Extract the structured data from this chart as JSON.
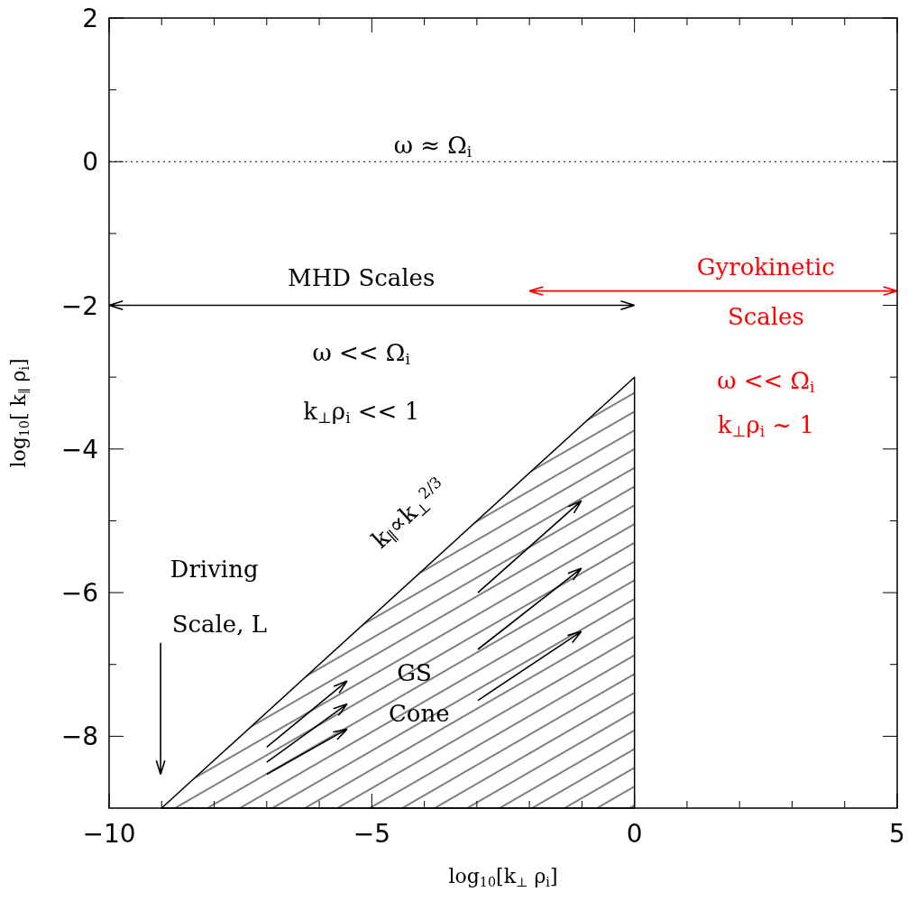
{
  "chart_data": {
    "type": "area",
    "xlabel": "log$_{10}$[k$_{⊥}$ ρ$_{i}$]",
    "ylabel": "log$_{10}$[ k$_{∥}$ ρ$_{i}$]",
    "xlim": [
      -10,
      5
    ],
    "ylim": [
      -9,
      2
    ],
    "xticks": [
      -10,
      {
        "value": -9,
        "label": null
      },
      {
        "value": -8,
        "label": null
      },
      {
        "value": -7,
        "label": null
      },
      {
        "value": -6,
        "label": null
      },
      -5,
      {
        "value": -4,
        "label": null
      },
      {
        "value": -3,
        "label": null
      },
      {
        "value": -2,
        "label": null
      },
      {
        "value": -1,
        "label": null
      },
      0,
      {
        "value": 1,
        "label": null
      },
      {
        "value": 2,
        "label": null
      },
      {
        "value": 3,
        "label": null
      },
      {
        "value": 4,
        "label": null
      },
      5
    ],
    "yticks": [
      -8,
      {
        "value": -7,
        "label": null
      },
      -6,
      {
        "value": -5,
        "label": null
      },
      -4,
      {
        "value": -3,
        "label": null
      },
      -2,
      {
        "value": -1,
        "label": null
      },
      0,
      {
        "value": 1,
        "label": null
      },
      2
    ],
    "series": [
      {
        "color": "#000000",
        "x": [
          -9,
          0
        ],
        "values": [
          -9,
          -3
        ]
      }
    ],
    "ref_lines": [
      {
        "axis": "y",
        "value": 0,
        "line_style": "dotted",
        "color": "#000000"
      }
    ],
    "annotations": [
      "ω ≈ Ω$_{i}$",
      "MHD Scales",
      "Gyrokinetic",
      "Scales",
      "ω << Ω$_{i}$",
      "k$_{⊥}$ρ$_{i}$ << 1",
      "ω << Ω$_{i}$",
      "k$_{⊥}$ρ$_{i}$ ~ 1",
      "Driving",
      "Scale, L",
      "GS",
      "Cone",
      "k$_{∥}$∝k$_{⊥}$$^{2/3}$"
    ]
  }
}
